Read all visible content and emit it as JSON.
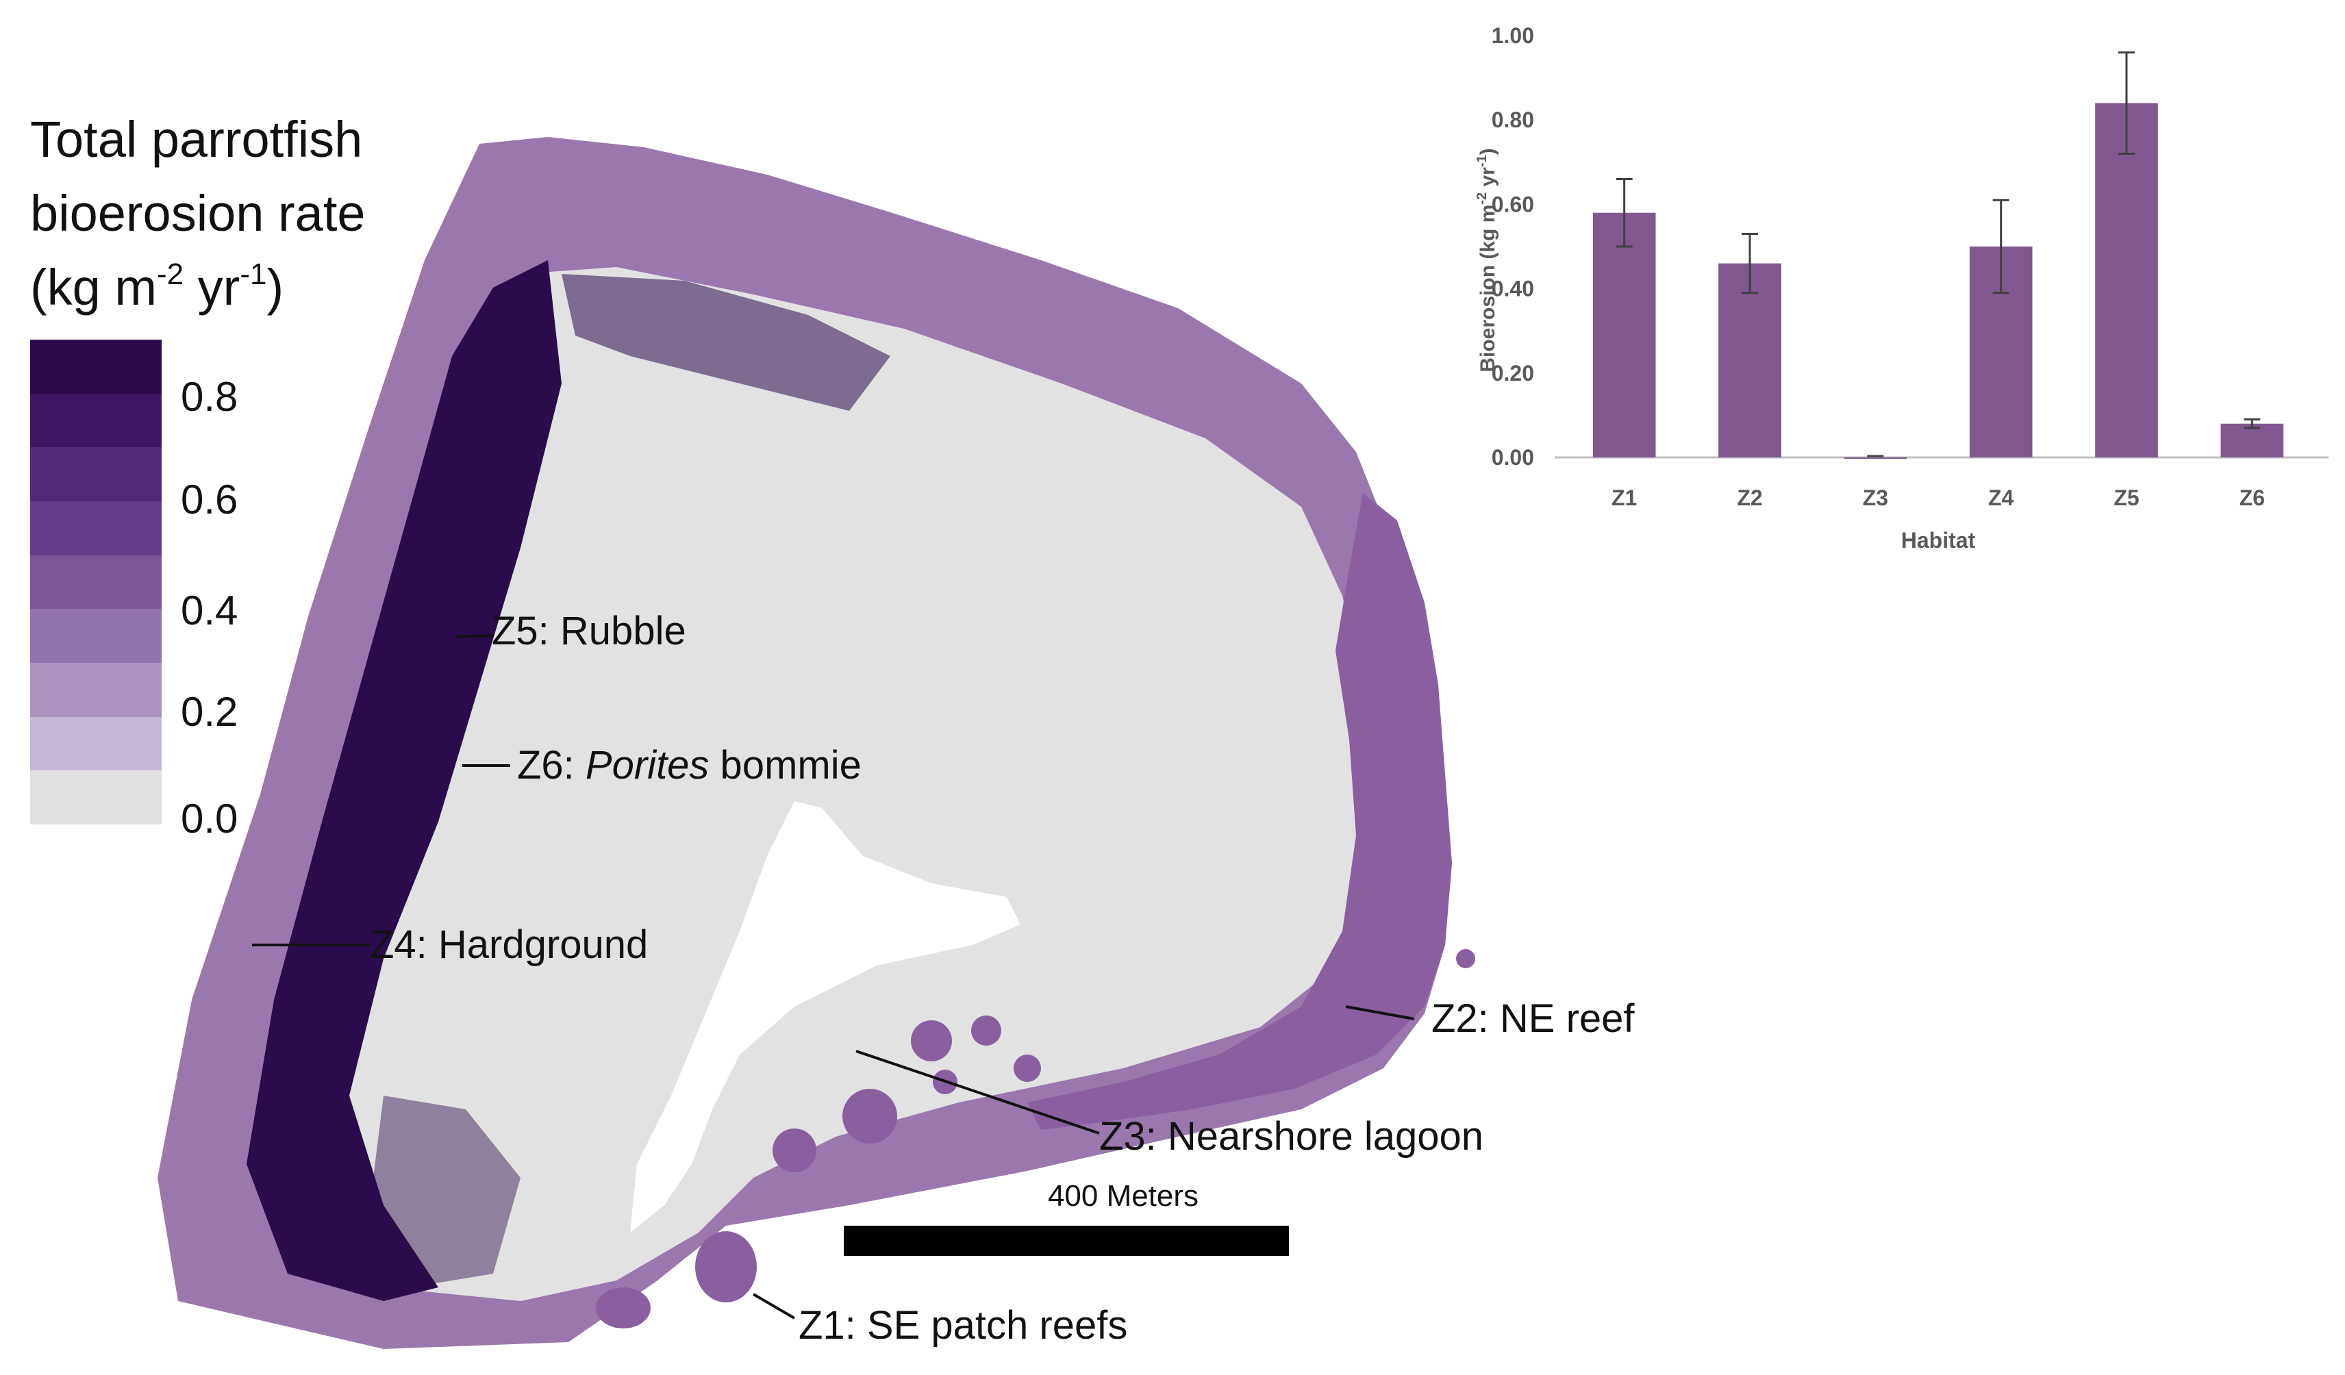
{
  "legend": {
    "title_line1": "Total parrotfish",
    "title_line2": "bioerosion rate",
    "title_line3_pre": "(kg m",
    "title_line3_sup1": "-2",
    "title_line3_mid": " yr",
    "title_line3_sup2": "-1",
    "title_line3_post": ")",
    "ticks": [
      "0.8",
      "0.6",
      "0.4",
      "0.2",
      "0.0"
    ],
    "colors": [
      "#2d0a4e",
      "#3e1764",
      "#52287a",
      "#653b8c",
      "#7a5599",
      "#9274ad",
      "#aa93c0",
      "#c6b6d6",
      "#e0e0e0"
    ]
  },
  "map": {
    "zones": [
      {
        "label": "Z5: Rubble"
      },
      {
        "label_pre": "Z6: ",
        "label_italic": "Porites",
        "label_post": " bommie"
      },
      {
        "label": "Z4: Hardground"
      },
      {
        "label": "Z2: NE reef"
      },
      {
        "label": "Z3: Nearshore lagoon"
      },
      {
        "label": "Z1: SE patch reefs"
      }
    ],
    "scale_label": "400 Meters",
    "colors": {
      "land": "#ffffff",
      "lagoon": "#e2e2e2",
      "reef_mid": "#8a5fa0",
      "reef_light": "#9a78ad",
      "reef_dark": "#2a0b4c"
    }
  },
  "chart_data": {
    "type": "bar",
    "categories": [
      "Z1",
      "Z2",
      "Z3",
      "Z4",
      "Z5",
      "Z6"
    ],
    "values": [
      0.58,
      0.46,
      0.0,
      0.5,
      0.84,
      0.08
    ],
    "errors": [
      0.08,
      0.07,
      0.0,
      0.11,
      0.12,
      0.01
    ],
    "y_ticks": [
      "0.00",
      "0.20",
      "0.40",
      "0.60",
      "0.80",
      "1.00"
    ],
    "xlabel": "Habitat",
    "ylabel_pre": "Bioerosion (kg m",
    "ylabel_sup1": "-2",
    "ylabel_mid": " yr",
    "ylabel_sup2": "-1",
    "ylabel_post": ")",
    "ylim": [
      0,
      1.0
    ],
    "bar_color": "#80578f",
    "legend": "none",
    "grid": false
  }
}
